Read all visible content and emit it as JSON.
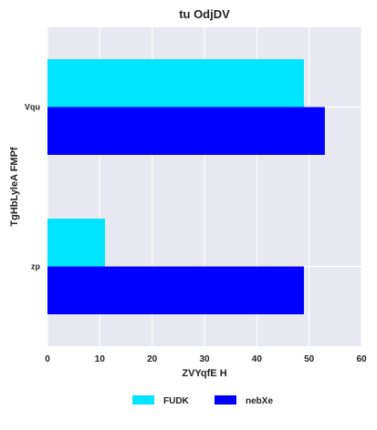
{
  "chart_data": {
    "type": "bar",
    "orientation": "horizontal",
    "title": "tu OdjDV",
    "xlabel": "ZVYqfE H",
    "ylabel": "TgHbLyleA FMPf",
    "categories": [
      "Vqu",
      "zp"
    ],
    "series": [
      {
        "name": "FUDK",
        "color": "#00e5ff",
        "values": [
          49,
          11
        ]
      },
      {
        "name": "nebXe",
        "color": "#0000ff",
        "values": [
          53,
          49
        ]
      }
    ],
    "xlim": [
      0,
      60
    ],
    "xticks": [
      0,
      10,
      20,
      30,
      40,
      50,
      60
    ],
    "grid": true,
    "legend_position": "bottom",
    "background": "#e8e8f0"
  }
}
